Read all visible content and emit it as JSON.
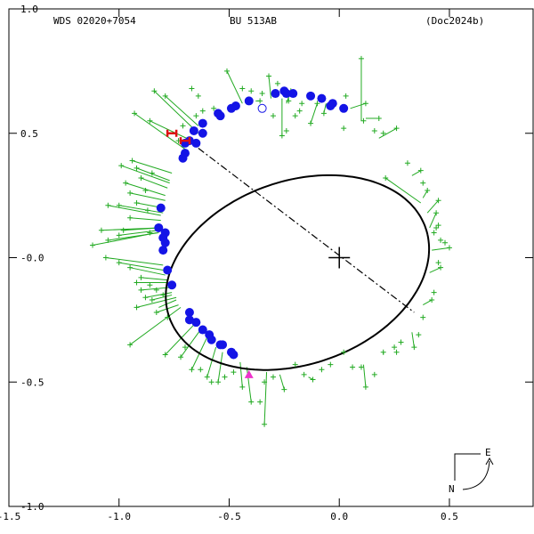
{
  "header": {
    "wds_id": "WDS 02020+7054",
    "discoverer": "BU  513AB",
    "reference": "(Doc2024b)"
  },
  "compass": {
    "east_label": "E",
    "north_label": "N"
  },
  "colors": {
    "orbit": "#000000",
    "observation_vectors": "#22aa22",
    "observation_points": "#22aa22",
    "high_weight_points": "#1414e6",
    "speckle_marker": "#dd1111",
    "predicted_marker": "#ee33cc",
    "open_circle": "#1414e6"
  },
  "chart_data": {
    "type": "scatter",
    "title": "",
    "xlabel": "",
    "ylabel": "",
    "xlim": [
      -1.5,
      0.88
    ],
    "ylim": [
      -1.0,
      1.0
    ],
    "x_ticks": [
      {
        "value": -1.5,
        "label": "-1.5"
      },
      {
        "value": -1.0,
        "label": "-1.0"
      },
      {
        "value": -0.5,
        "label": "-0.5"
      },
      {
        "value": 0.0,
        "label": "0.0"
      },
      {
        "value": 0.5,
        "label": "0.5"
      }
    ],
    "y_ticks": [
      {
        "value": 1.0,
        "label": "1.0"
      },
      {
        "value": 0.5,
        "label": "0.5"
      },
      {
        "value": 0.0,
        "label": "-0.0"
      },
      {
        "value": -0.5,
        "label": "-0.5"
      },
      {
        "value": -1.0,
        "label": "-1.0"
      }
    ],
    "primary_star": [
      0.0,
      0.0
    ],
    "orbit_ellipse": {
      "center": [
        -0.19,
        -0.06
      ],
      "semi_axes": [
        0.61,
        0.372
      ],
      "rotation_deg": 14.6
    },
    "line_of_nodes": [
      [
        -0.64,
        0.44
      ],
      [
        0.34,
        -0.22
      ]
    ],
    "observations_plus": [
      [
        -1.12,
        0.05
      ],
      [
        -1.05,
        0.07
      ],
      [
        -1.0,
        0.09
      ],
      [
        -0.95,
        0.16
      ],
      [
        -1.08,
        0.11
      ],
      [
        -0.98,
        0.11
      ],
      [
        -1.05,
        0.21
      ],
      [
        -1.0,
        0.21
      ],
      [
        -0.92,
        0.22
      ],
      [
        -0.95,
        0.26
      ],
      [
        -0.97,
        0.3
      ],
      [
        -0.9,
        0.32
      ],
      [
        -0.99,
        0.37
      ],
      [
        -0.92,
        0.36
      ],
      [
        -0.94,
        0.39
      ],
      [
        -0.88,
        0.27
      ],
      [
        -0.85,
        0.34
      ],
      [
        -0.87,
        0.19
      ],
      [
        -0.86,
        0.1
      ],
      [
        -1.06,
        -0.0
      ],
      [
        -1.0,
        -0.02
      ],
      [
        -0.95,
        -0.04
      ],
      [
        -0.9,
        -0.08
      ],
      [
        -0.92,
        -0.1
      ],
      [
        -0.86,
        -0.11
      ],
      [
        -0.9,
        -0.13
      ],
      [
        -0.83,
        -0.13
      ],
      [
        -0.88,
        -0.16
      ],
      [
        -0.85,
        -0.17
      ],
      [
        -0.8,
        -0.15
      ],
      [
        -0.92,
        -0.2
      ],
      [
        -0.83,
        -0.22
      ],
      [
        -0.78,
        -0.24
      ],
      [
        -0.95,
        -0.35
      ],
      [
        -0.79,
        -0.39
      ],
      [
        -0.72,
        -0.4
      ],
      [
        -0.7,
        -0.36
      ],
      [
        -0.67,
        -0.45
      ],
      [
        -0.63,
        -0.45
      ],
      [
        -0.6,
        -0.48
      ],
      [
        -0.58,
        -0.5
      ],
      [
        -0.55,
        -0.5
      ],
      [
        -0.52,
        -0.48
      ],
      [
        -0.48,
        -0.46
      ],
      [
        -0.44,
        -0.52
      ],
      [
        -0.4,
        -0.58
      ],
      [
        -0.34,
        -0.67
      ],
      [
        -0.36,
        -0.58
      ],
      [
        -0.34,
        -0.5
      ],
      [
        -0.3,
        -0.48
      ],
      [
        -0.25,
        -0.53
      ],
      [
        -0.2,
        -0.43
      ],
      [
        -0.16,
        -0.47
      ],
      [
        -0.12,
        -0.49
      ],
      [
        -0.08,
        -0.45
      ],
      [
        -0.04,
        -0.43
      ],
      [
        0.02,
        -0.38
      ],
      [
        0.06,
        -0.44
      ],
      [
        0.1,
        -0.44
      ],
      [
        0.12,
        -0.52
      ],
      [
        0.16,
        -0.47
      ],
      [
        0.2,
        -0.38
      ],
      [
        0.26,
        -0.38
      ],
      [
        0.25,
        -0.36
      ],
      [
        0.28,
        -0.34
      ],
      [
        0.34,
        -0.36
      ],
      [
        0.36,
        -0.31
      ],
      [
        0.38,
        -0.24
      ],
      [
        0.42,
        -0.17
      ],
      [
        0.43,
        -0.14
      ],
      [
        0.46,
        -0.04
      ],
      [
        0.45,
        -0.02
      ],
      [
        0.5,
        0.04
      ],
      [
        0.48,
        0.06
      ],
      [
        0.46,
        0.07
      ],
      [
        0.43,
        0.1
      ],
      [
        0.44,
        0.12
      ],
      [
        0.45,
        0.13
      ],
      [
        0.44,
        0.18
      ],
      [
        0.45,
        0.23
      ],
      [
        0.4,
        0.27
      ],
      [
        0.38,
        0.3
      ],
      [
        0.37,
        0.35
      ],
      [
        0.31,
        0.38
      ],
      [
        0.21,
        0.32
      ],
      [
        0.26,
        0.52
      ],
      [
        0.2,
        0.5
      ],
      [
        0.16,
        0.51
      ],
      [
        0.11,
        0.55
      ],
      [
        0.1,
        0.8
      ],
      [
        0.02,
        0.52
      ],
      [
        -0.13,
        0.54
      ],
      [
        -0.1,
        0.62
      ],
      [
        -0.17,
        0.62
      ],
      [
        -0.2,
        0.57
      ],
      [
        -0.23,
        0.63
      ],
      [
        -0.24,
        0.51
      ],
      [
        -0.22,
        0.67
      ],
      [
        -0.3,
        0.57
      ],
      [
        -0.28,
        0.7
      ],
      [
        -0.32,
        0.73
      ],
      [
        -0.35,
        0.66
      ],
      [
        -0.4,
        0.67
      ],
      [
        -0.44,
        0.68
      ],
      [
        -0.51,
        0.75
      ],
      [
        -0.57,
        0.6
      ],
      [
        -0.62,
        0.59
      ],
      [
        -0.65,
        0.57
      ],
      [
        -0.71,
        0.53
      ],
      [
        -0.73,
        0.47
      ],
      [
        -0.79,
        0.65
      ],
      [
        -0.84,
        0.67
      ],
      [
        -0.86,
        0.55
      ],
      [
        -0.93,
        0.58
      ],
      [
        -0.64,
        0.65
      ],
      [
        -0.67,
        0.68
      ],
      [
        -0.07,
        0.58
      ],
      [
        0.12,
        0.62
      ],
      [
        0.18,
        0.56
      ],
      [
        0.03,
        0.65
      ],
      [
        -0.26,
        0.49
      ],
      [
        -0.18,
        0.59
      ],
      [
        -0.36,
        0.63
      ]
    ],
    "observations_dots": [
      [
        -0.81,
        0.2
      ],
      [
        -0.82,
        0.12
      ],
      [
        -0.79,
        0.1
      ],
      [
        -0.8,
        0.08
      ],
      [
        -0.79,
        0.06
      ],
      [
        -0.8,
        0.03
      ],
      [
        -0.78,
        -0.05
      ],
      [
        -0.76,
        -0.11
      ],
      [
        -0.68,
        -0.22
      ],
      [
        -0.68,
        -0.25
      ],
      [
        -0.65,
        -0.26
      ],
      [
        -0.62,
        -0.29
      ],
      [
        -0.59,
        -0.31
      ],
      [
        -0.58,
        -0.33
      ],
      [
        -0.54,
        -0.35
      ],
      [
        -0.53,
        -0.35
      ],
      [
        -0.49,
        -0.38
      ],
      [
        -0.48,
        -0.39
      ],
      [
        -0.71,
        0.4
      ],
      [
        -0.7,
        0.42
      ],
      [
        -0.7,
        0.46
      ],
      [
        -0.68,
        0.47
      ],
      [
        -0.65,
        0.46
      ],
      [
        -0.66,
        0.51
      ],
      [
        -0.62,
        0.5
      ],
      [
        -0.62,
        0.54
      ],
      [
        -0.55,
        0.58
      ],
      [
        -0.54,
        0.57
      ],
      [
        -0.49,
        0.6
      ],
      [
        -0.47,
        0.61
      ],
      [
        -0.41,
        0.63
      ],
      [
        -0.29,
        0.66
      ],
      [
        -0.25,
        0.67
      ],
      [
        -0.24,
        0.66
      ],
      [
        -0.21,
        0.66
      ],
      [
        -0.13,
        0.65
      ],
      [
        -0.08,
        0.64
      ],
      [
        -0.03,
        0.62
      ],
      [
        -0.04,
        0.61
      ],
      [
        0.02,
        0.6
      ]
    ],
    "vectors": [
      [
        [
          -1.12,
          0.05
        ],
        [
          -0.83,
          0.1
        ]
      ],
      [
        [
          -1.05,
          0.07
        ],
        [
          -0.82,
          0.1
        ]
      ],
      [
        [
          -1.0,
          0.09
        ],
        [
          -0.82,
          0.11
        ]
      ],
      [
        [
          -0.95,
          0.16
        ],
        [
          -0.81,
          0.15
        ]
      ],
      [
        [
          -1.08,
          0.11
        ],
        [
          -0.82,
          0.12
        ]
      ],
      [
        [
          -0.98,
          0.11
        ],
        [
          -0.82,
          0.12
        ]
      ],
      [
        [
          -1.05,
          0.21
        ],
        [
          -0.81,
          0.17
        ]
      ],
      [
        [
          -1.0,
          0.21
        ],
        [
          -0.8,
          0.18
        ]
      ],
      [
        [
          -0.92,
          0.22
        ],
        [
          -0.8,
          0.2
        ]
      ],
      [
        [
          -0.95,
          0.26
        ],
        [
          -0.79,
          0.23
        ]
      ],
      [
        [
          -0.97,
          0.3
        ],
        [
          -0.79,
          0.25
        ]
      ],
      [
        [
          -0.9,
          0.32
        ],
        [
          -0.78,
          0.28
        ]
      ],
      [
        [
          -0.99,
          0.37
        ],
        [
          -0.77,
          0.3
        ]
      ],
      [
        [
          -0.92,
          0.36
        ],
        [
          -0.77,
          0.31
        ]
      ],
      [
        [
          -0.94,
          0.39
        ],
        [
          -0.76,
          0.34
        ]
      ],
      [
        [
          -1.06,
          -0.0
        ],
        [
          -0.8,
          -0.03
        ]
      ],
      [
        [
          -1.0,
          -0.02
        ],
        [
          -0.8,
          -0.05
        ]
      ],
      [
        [
          -0.95,
          -0.04
        ],
        [
          -0.79,
          -0.07
        ]
      ],
      [
        [
          -0.9,
          -0.08
        ],
        [
          -0.78,
          -0.09
        ]
      ],
      [
        [
          -0.92,
          -0.1
        ],
        [
          -0.78,
          -0.1
        ]
      ],
      [
        [
          -0.9,
          -0.13
        ],
        [
          -0.77,
          -0.12
        ]
      ],
      [
        [
          -0.88,
          -0.16
        ],
        [
          -0.76,
          -0.14
        ]
      ],
      [
        [
          -0.92,
          -0.2
        ],
        [
          -0.74,
          -0.16
        ]
      ],
      [
        [
          -0.95,
          -0.35
        ],
        [
          -0.72,
          -0.2
        ]
      ],
      [
        [
          -0.79,
          -0.39
        ],
        [
          -0.66,
          -0.27
        ]
      ],
      [
        [
          -0.72,
          -0.4
        ],
        [
          -0.63,
          -0.29
        ]
      ],
      [
        [
          -0.67,
          -0.45
        ],
        [
          -0.6,
          -0.32
        ]
      ],
      [
        [
          -0.6,
          -0.48
        ],
        [
          -0.56,
          -0.36
        ]
      ],
      [
        [
          -0.55,
          -0.5
        ],
        [
          -0.53,
          -0.38
        ]
      ],
      [
        [
          -0.44,
          -0.52
        ],
        [
          -0.45,
          -0.42
        ]
      ],
      [
        [
          -0.4,
          -0.58
        ],
        [
          -0.42,
          -0.44
        ]
      ],
      [
        [
          -0.34,
          -0.67
        ],
        [
          -0.33,
          -0.46
        ]
      ],
      [
        [
          -0.25,
          -0.53
        ],
        [
          -0.27,
          -0.47
        ]
      ],
      [
        [
          -0.12,
          -0.49
        ],
        [
          -0.14,
          -0.48
        ]
      ],
      [
        [
          0.12,
          -0.52
        ],
        [
          0.11,
          -0.43
        ]
      ],
      [
        [
          0.2,
          -0.38
        ],
        [
          0.2,
          -0.39
        ]
      ],
      [
        [
          0.34,
          -0.36
        ],
        [
          0.33,
          -0.3
        ]
      ],
      [
        [
          0.42,
          -0.17
        ],
        [
          0.38,
          -0.19
        ]
      ],
      [
        [
          0.46,
          -0.04
        ],
        [
          0.41,
          -0.06
        ]
      ],
      [
        [
          0.5,
          0.04
        ],
        [
          0.42,
          0.03
        ]
      ],
      [
        [
          0.44,
          0.18
        ],
        [
          0.41,
          0.12
        ]
      ],
      [
        [
          0.45,
          0.23
        ],
        [
          0.4,
          0.18
        ]
      ],
      [
        [
          0.4,
          0.27
        ],
        [
          0.38,
          0.24
        ]
      ],
      [
        [
          0.37,
          0.35
        ],
        [
          0.33,
          0.33
        ]
      ],
      [
        [
          0.21,
          0.32
        ],
        [
          0.37,
          0.22
        ]
      ],
      [
        [
          0.26,
          0.52
        ],
        [
          0.18,
          0.48
        ]
      ],
      [
        [
          0.1,
          0.8
        ],
        [
          0.1,
          0.55
        ]
      ],
      [
        [
          -0.13,
          0.54
        ],
        [
          -0.1,
          0.62
        ]
      ],
      [
        [
          -0.22,
          0.67
        ],
        [
          -0.24,
          0.62
        ]
      ],
      [
        [
          -0.32,
          0.73
        ],
        [
          -0.31,
          0.64
        ]
      ],
      [
        [
          -0.51,
          0.75
        ],
        [
          -0.44,
          0.62
        ]
      ],
      [
        [
          -0.84,
          0.67
        ],
        [
          -0.64,
          0.5
        ]
      ],
      [
        [
          -0.86,
          0.55
        ],
        [
          -0.67,
          0.47
        ]
      ],
      [
        [
          -0.93,
          0.58
        ],
        [
          -0.69,
          0.43
        ]
      ],
      [
        [
          -0.79,
          0.65
        ],
        [
          -0.64,
          0.53
        ]
      ],
      [
        [
          -0.07,
          0.58
        ],
        [
          -0.06,
          0.62
        ]
      ],
      [
        [
          0.12,
          0.62
        ],
        [
          0.05,
          0.6
        ]
      ],
      [
        [
          0.18,
          0.56
        ],
        [
          0.12,
          0.56
        ]
      ],
      [
        [
          -0.26,
          0.49
        ],
        [
          -0.26,
          0.64
        ]
      ],
      [
        [
          -0.36,
          0.63
        ],
        [
          -0.38,
          0.63
        ]
      ],
      [
        [
          -0.82,
          -0.2
        ],
        [
          -0.74,
          -0.17
        ]
      ],
      [
        [
          -0.85,
          -0.17
        ],
        [
          -0.76,
          -0.15
        ]
      ],
      [
        [
          -0.83,
          -0.22
        ],
        [
          -0.73,
          -0.19
        ]
      ]
    ],
    "speckle_points": [
      [
        -0.76,
        0.5
      ],
      [
        -0.7,
        0.47
      ]
    ],
    "predicted_point": [
      -0.41,
      -0.47
    ],
    "open_circle_point": [
      -0.35,
      0.6
    ],
    "grid": false,
    "legend": "none"
  }
}
